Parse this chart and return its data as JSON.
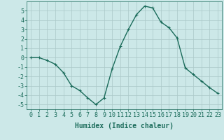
{
  "x": [
    0,
    1,
    2,
    3,
    4,
    5,
    6,
    7,
    8,
    9,
    10,
    11,
    12,
    13,
    14,
    15,
    16,
    17,
    18,
    19,
    20,
    21,
    22,
    23
  ],
  "y": [
    0,
    0,
    -0.3,
    -0.7,
    -1.6,
    -3.0,
    -3.5,
    -4.3,
    -5.0,
    -4.3,
    -1.2,
    1.2,
    3.0,
    4.6,
    5.5,
    5.3,
    3.8,
    3.2,
    2.1,
    -1.1,
    -1.8,
    -2.5,
    -3.2,
    -3.8
  ],
  "line_color": "#1a6b5a",
  "marker": "+",
  "marker_size": 3,
  "bg_color": "#cce8e8",
  "grid_color": "#aac8c8",
  "xlabel": "Humidex (Indice chaleur)",
  "xlabel_fontsize": 7,
  "xlim": [
    -0.5,
    23.5
  ],
  "ylim": [
    -5.5,
    6.0
  ],
  "yticks": [
    -5,
    -4,
    -3,
    -2,
    -1,
    0,
    1,
    2,
    3,
    4,
    5
  ],
  "xticks": [
    0,
    1,
    2,
    3,
    4,
    5,
    6,
    7,
    8,
    9,
    10,
    11,
    12,
    13,
    14,
    15,
    16,
    17,
    18,
    19,
    20,
    21,
    22,
    23
  ],
  "tick_fontsize": 6,
  "line_width": 1.0
}
